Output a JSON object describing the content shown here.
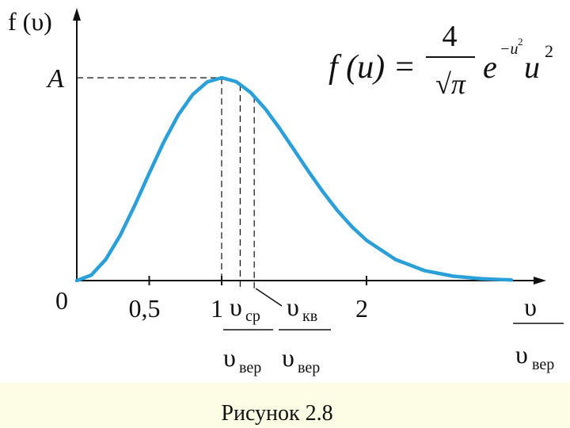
{
  "chart_data": {
    "type": "line",
    "y_label": "f (υ)",
    "x_label": {
      "numerator": "υ",
      "denominator": "υ",
      "denominator_sub": "вер"
    },
    "formula": {
      "lhs": "f (u) =",
      "numerator": "4",
      "denominator": "√π",
      "base": "e",
      "exponent": "−u",
      "exponent_power": "2",
      "factor": "u",
      "factor_power": "2"
    },
    "x": [
      0,
      0.1,
      0.2,
      0.3,
      0.4,
      0.5,
      0.6,
      0.7,
      0.8,
      0.9,
      1.0,
      1.1,
      1.2,
      1.3,
      1.4,
      1.5,
      1.6,
      1.7,
      1.8,
      1.9,
      2.0,
      2.2,
      2.4,
      2.6,
      2.8,
      3.0
    ],
    "values": [
      0,
      0.0223,
      0.0867,
      0.1856,
      0.3077,
      0.4394,
      0.5668,
      0.6775,
      0.7616,
      0.8132,
      0.8302,
      0.8143,
      0.77,
      0.7038,
      0.6231,
      0.5352,
      0.4466,
      0.3625,
      0.2863,
      0.2204,
      0.1653,
      0.0864,
      0.041,
      0.0177,
      0.007,
      0.0025
    ],
    "color": "#2a9fd8",
    "xlim": [
      0,
      3.23
    ],
    "ylim": [
      0,
      1.1
    ],
    "xticks": [
      {
        "value": 0.5,
        "label": "0,5"
      },
      1,
      2
    ],
    "yticks": [
      {
        "value": 0,
        "label": "0"
      },
      {
        "value": 0.8302,
        "label": "A"
      }
    ],
    "annotations": [
      {
        "x": 1.128,
        "numerator": "υ",
        "numerator_sub": "ср",
        "denominator": "υ",
        "denominator_sub": "вер"
      },
      {
        "x": 1.225,
        "numerator": "υ",
        "numerator_sub": "кв",
        "denominator": "υ",
        "denominator_sub": "вер"
      }
    ],
    "caption": "Рисунок 2.8"
  }
}
